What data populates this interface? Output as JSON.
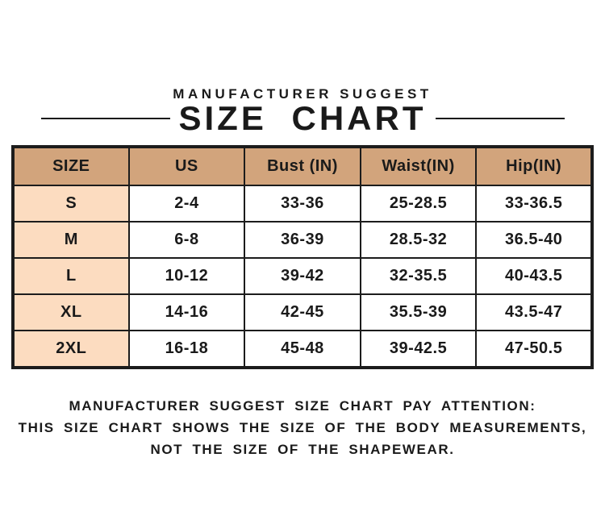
{
  "chart_data": {
    "type": "table",
    "subtitle": "MANUFACTURER SUGGEST",
    "title": "SIZE CHART",
    "columns": [
      "SIZE",
      "US",
      "Bust (IN)",
      "Waist(IN)",
      "Hip(IN)"
    ],
    "rows": [
      [
        "S",
        "2-4",
        "33-36",
        "25-28.5",
        "33-36.5"
      ],
      [
        "M",
        "6-8",
        "36-39",
        "28.5-32",
        "36.5-40"
      ],
      [
        "L",
        "10-12",
        "39-42",
        "32-35.5",
        "40-43.5"
      ],
      [
        "XL",
        "14-16",
        "42-45",
        "35.5-39",
        "43.5-47"
      ],
      [
        "2XL",
        "16-18",
        "45-48",
        "39-42.5",
        "47-50.5"
      ]
    ],
    "units": "inches"
  },
  "footer": {
    "lines": [
      "MANUFACTURER SUGGEST SIZE CHART PAY ATTENTION:",
      "THIS SIZE CHART SHOWS THE SIZE OF THE BODY MEASUREMENTS,",
      "NOT THE SIZE OF THE SHAPEWEAR."
    ]
  },
  "colors": {
    "background": "#ffffff",
    "header_fill": "#d2a47c",
    "size_column_fill": "#fcdcc0",
    "border": "#1c1c1c",
    "text": "#1a1a1a"
  }
}
